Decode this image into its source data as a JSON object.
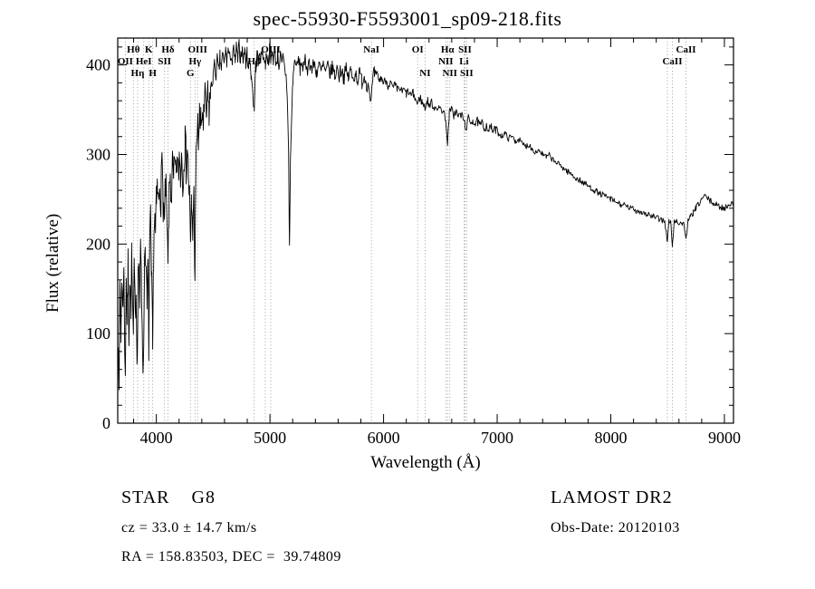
{
  "title": "spec-55930-F5593001_sp09-218.fits",
  "annotations": {
    "object_type": "STAR    G8",
    "survey": "LAMOST DR2",
    "cz": "cz = 33.0 ± 14.7 km/s",
    "obs_date": "Obs-Date: 20120103",
    "coords": "RA = 158.83503, DEC =  39.74809"
  },
  "colors": {
    "background": "#ffffff",
    "axis": "#000000",
    "spectrum": "#000000",
    "marker_line": "#8a8a8a"
  },
  "chart_data": {
    "type": "line",
    "title": "spec-55930-F5593001_sp09-218.fits",
    "xlabel": "Wavelength (Å)",
    "ylabel": "Flux (relative)",
    "xlim": [
      3660,
      9080
    ],
    "ylim": [
      0,
      430
    ],
    "x_ticks": [
      4000,
      5000,
      6000,
      7000,
      8000,
      9000
    ],
    "y_ticks": [
      0,
      100,
      200,
      300,
      400
    ],
    "x_minor_step": 200,
    "y_minor_step": 20,
    "grid": false,
    "legend": "none",
    "line_markers": [
      {
        "label": "Hθ",
        "wavelength": 3798,
        "row": 0
      },
      {
        "label": "K",
        "wavelength": 3933,
        "row": 0
      },
      {
        "label": "Hδ",
        "wavelength": 4102,
        "row": 0
      },
      {
        "label": "OIII",
        "wavelength": 4363,
        "row": 0
      },
      {
        "label": "OIII",
        "wavelength": 5007,
        "row": 0
      },
      {
        "label": "NaI",
        "wavelength": 5893,
        "row": 0
      },
      {
        "label": "OI",
        "wavelength": 6300,
        "row": 0
      },
      {
        "label": "Hα",
        "wavelength": 6563,
        "row": 0
      },
      {
        "label": "SII",
        "wavelength": 6716,
        "row": 0
      },
      {
        "label": "CaII",
        "wavelength": 8662,
        "row": 0
      },
      {
        "label": "OII",
        "wavelength": 3727,
        "row": 1
      },
      {
        "label": "HeI",
        "wavelength": 3889,
        "row": 1
      },
      {
        "label": "SII",
        "wavelength": 4072,
        "row": 1
      },
      {
        "label": "Hγ",
        "wavelength": 4340,
        "row": 1
      },
      {
        "label": "Hβ",
        "wavelength": 4861,
        "row": 1
      },
      {
        "label": "NII",
        "wavelength": 6548,
        "row": 1
      },
      {
        "label": "Li",
        "wavelength": 6708,
        "row": 1
      },
      {
        "label": "CaII",
        "wavelength": 8542,
        "row": 1
      },
      {
        "label": "Hη",
        "wavelength": 3835,
        "row": 2
      },
      {
        "label": "H",
        "wavelength": 3968,
        "row": 2
      },
      {
        "label": "G",
        "wavelength": 4300,
        "row": 2
      },
      {
        "label": "NI",
        "wavelength": 6365,
        "row": 2
      },
      {
        "label": "NII",
        "wavelength": 6583,
        "row": 2
      },
      {
        "label": "SII",
        "wavelength": 6731,
        "row": 2
      }
    ],
    "extra_lines": [
      4959,
      8498
    ],
    "noise": {
      "seed": 7,
      "segments": [
        {
          "from": 3660,
          "to": 4480,
          "amp": 26
        },
        {
          "from": 4480,
          "to": 5950,
          "amp": 9
        },
        {
          "from": 5950,
          "to": 7000,
          "amp": 5
        },
        {
          "from": 7000,
          "to": 9081,
          "amp": 3.5
        }
      ]
    },
    "points": [
      [
        3665,
        110
      ],
      [
        3672,
        60
      ],
      [
        3680,
        145
      ],
      [
        3688,
        95
      ],
      [
        3696,
        170
      ],
      [
        3704,
        120
      ],
      [
        3712,
        180
      ],
      [
        3720,
        100
      ],
      [
        3727,
        60
      ],
      [
        3735,
        160
      ],
      [
        3743,
        115
      ],
      [
        3751,
        175
      ],
      [
        3759,
        105
      ],
      [
        3767,
        165
      ],
      [
        3775,
        125
      ],
      [
        3783,
        180
      ],
      [
        3791,
        130
      ],
      [
        3798,
        90
      ],
      [
        3806,
        170
      ],
      [
        3814,
        110
      ],
      [
        3822,
        160
      ],
      [
        3830,
        70
      ],
      [
        3838,
        150
      ],
      [
        3846,
        185
      ],
      [
        3854,
        130
      ],
      [
        3862,
        190
      ],
      [
        3870,
        145
      ],
      [
        3878,
        100
      ],
      [
        3886,
        50
      ],
      [
        3894,
        170
      ],
      [
        3902,
        205
      ],
      [
        3910,
        165
      ],
      [
        3918,
        125
      ],
      [
        3926,
        175
      ],
      [
        3933,
        90
      ],
      [
        3941,
        195
      ],
      [
        3949,
        220
      ],
      [
        3957,
        160
      ],
      [
        3968,
        80
      ],
      [
        3976,
        195
      ],
      [
        3984,
        230
      ],
      [
        3992,
        210
      ],
      [
        4000,
        240
      ],
      [
        4010,
        260
      ],
      [
        4020,
        240
      ],
      [
        4030,
        275
      ],
      [
        4040,
        255
      ],
      [
        4050,
        285
      ],
      [
        4060,
        250
      ],
      [
        4072,
        220
      ],
      [
        4082,
        265
      ],
      [
        4092,
        225
      ],
      [
        4102,
        172
      ],
      [
        4112,
        240
      ],
      [
        4122,
        275
      ],
      [
        4132,
        255
      ],
      [
        4142,
        285
      ],
      [
        4152,
        265
      ],
      [
        4162,
        290
      ],
      [
        4172,
        270
      ],
      [
        4182,
        295
      ],
      [
        4192,
        275
      ],
      [
        4202,
        300
      ],
      [
        4212,
        280
      ],
      [
        4222,
        305
      ],
      [
        4232,
        270
      ],
      [
        4242,
        300
      ],
      [
        4252,
        315
      ],
      [
        4262,
        290
      ],
      [
        4272,
        310
      ],
      [
        4282,
        280
      ],
      [
        4292,
        250
      ],
      [
        4300,
        190
      ],
      [
        4310,
        245
      ],
      [
        4320,
        215
      ],
      [
        4330,
        250
      ],
      [
        4340,
        172
      ],
      [
        4350,
        290
      ],
      [
        4360,
        330
      ],
      [
        4370,
        318
      ],
      [
        4380,
        340
      ],
      [
        4392,
        328
      ],
      [
        4404,
        348
      ],
      [
        4416,
        336
      ],
      [
        4428,
        355
      ],
      [
        4440,
        342
      ],
      [
        4452,
        360
      ],
      [
        4464,
        350
      ],
      [
        4476,
        368
      ],
      [
        4488,
        378
      ],
      [
        4500,
        388
      ],
      [
        4512,
        398
      ],
      [
        4524,
        388
      ],
      [
        4536,
        405
      ],
      [
        4548,
        392
      ],
      [
        4560,
        408
      ],
      [
        4572,
        396
      ],
      [
        4584,
        412
      ],
      [
        4596,
        400
      ],
      [
        4608,
        416
      ],
      [
        4620,
        404
      ],
      [
        4632,
        418
      ],
      [
        4644,
        406
      ],
      [
        4656,
        414
      ],
      [
        4668,
        402
      ],
      [
        4680,
        416
      ],
      [
        4692,
        404
      ],
      [
        4704,
        418
      ],
      [
        4716,
        406
      ],
      [
        4728,
        420
      ],
      [
        4740,
        408
      ],
      [
        4752,
        418
      ],
      [
        4764,
        406
      ],
      [
        4776,
        416
      ],
      [
        4788,
        404
      ],
      [
        4800,
        412
      ],
      [
        4812,
        398
      ],
      [
        4824,
        406
      ],
      [
        4836,
        388
      ],
      [
        4848,
        372
      ],
      [
        4861,
        348
      ],
      [
        4874,
        398
      ],
      [
        4886,
        412
      ],
      [
        4898,
        402
      ],
      [
        4910,
        416
      ],
      [
        4922,
        406
      ],
      [
        4934,
        418
      ],
      [
        4946,
        408
      ],
      [
        4959,
        400
      ],
      [
        4972,
        414
      ],
      [
        4984,
        404
      ],
      [
        4996,
        416
      ],
      [
        5007,
        402
      ],
      [
        5020,
        416
      ],
      [
        5032,
        406
      ],
      [
        5044,
        414
      ],
      [
        5056,
        402
      ],
      [
        5068,
        412
      ],
      [
        5080,
        400
      ],
      [
        5092,
        410
      ],
      [
        5104,
        398
      ],
      [
        5116,
        408
      ],
      [
        5128,
        396
      ],
      [
        5140,
        390
      ],
      [
        5152,
        368
      ],
      [
        5164,
        300
      ],
      [
        5172,
        195
      ],
      [
        5180,
        290
      ],
      [
        5190,
        340
      ],
      [
        5202,
        385
      ],
      [
        5214,
        400
      ],
      [
        5226,
        408
      ],
      [
        5238,
        396
      ],
      [
        5250,
        406
      ],
      [
        5265,
        396
      ],
      [
        5280,
        404
      ],
      [
        5295,
        394
      ],
      [
        5310,
        404
      ],
      [
        5330,
        396
      ],
      [
        5350,
        404
      ],
      [
        5370,
        394
      ],
      [
        5390,
        402
      ],
      [
        5410,
        392
      ],
      [
        5430,
        400
      ],
      [
        5450,
        392
      ],
      [
        5470,
        400
      ],
      [
        5490,
        390
      ],
      [
        5510,
        398
      ],
      [
        5530,
        390
      ],
      [
        5550,
        398
      ],
      [
        5570,
        388
      ],
      [
        5590,
        396
      ],
      [
        5610,
        388
      ],
      [
        5630,
        396
      ],
      [
        5650,
        386
      ],
      [
        5670,
        394
      ],
      [
        5690,
        386
      ],
      [
        5710,
        394
      ],
      [
        5730,
        384
      ],
      [
        5750,
        392
      ],
      [
        5770,
        384
      ],
      [
        5790,
        390
      ],
      [
        5810,
        382
      ],
      [
        5830,
        388
      ],
      [
        5850,
        380
      ],
      [
        5870,
        376
      ],
      [
        5893,
        362
      ],
      [
        5906,
        384
      ],
      [
        5920,
        390
      ],
      [
        5935,
        384
      ],
      [
        5950,
        388
      ],
      [
        5965,
        382
      ],
      [
        5980,
        386
      ],
      [
        6000,
        380
      ],
      [
        6020,
        383
      ],
      [
        6040,
        377
      ],
      [
        6060,
        380
      ],
      [
        6080,
        374
      ],
      [
        6100,
        377
      ],
      [
        6120,
        372
      ],
      [
        6140,
        374
      ],
      [
        6160,
        370
      ],
      [
        6180,
        372
      ],
      [
        6200,
        368
      ],
      [
        6220,
        370
      ],
      [
        6240,
        366
      ],
      [
        6260,
        368
      ],
      [
        6280,
        362
      ],
      [
        6300,
        356
      ],
      [
        6320,
        364
      ],
      [
        6340,
        358
      ],
      [
        6365,
        352
      ],
      [
        6385,
        360
      ],
      [
        6405,
        355
      ],
      [
        6425,
        358
      ],
      [
        6445,
        352
      ],
      [
        6465,
        355
      ],
      [
        6485,
        350
      ],
      [
        6505,
        352
      ],
      [
        6525,
        348
      ],
      [
        6548,
        340
      ],
      [
        6563,
        308
      ],
      [
        6578,
        346
      ],
      [
        6598,
        350
      ],
      [
        6618,
        344
      ],
      [
        6638,
        348
      ],
      [
        6658,
        342
      ],
      [
        6678,
        345
      ],
      [
        6700,
        340
      ],
      [
        6716,
        334
      ],
      [
        6731,
        330
      ],
      [
        6746,
        340
      ],
      [
        6766,
        336
      ],
      [
        6786,
        339
      ],
      [
        6806,
        334
      ],
      [
        6826,
        337
      ],
      [
        6846,
        332
      ],
      [
        6866,
        335
      ],
      [
        6886,
        330
      ],
      [
        6906,
        332
      ],
      [
        6926,
        328
      ],
      [
        6946,
        330
      ],
      [
        6966,
        326
      ],
      [
        6986,
        328
      ],
      [
        7010,
        324
      ],
      [
        7040,
        321
      ],
      [
        7070,
        323
      ],
      [
        7100,
        318
      ],
      [
        7130,
        320
      ],
      [
        7160,
        315
      ],
      [
        7190,
        317
      ],
      [
        7220,
        312
      ],
      [
        7250,
        309
      ],
      [
        7280,
        311
      ],
      [
        7310,
        306
      ],
      [
        7340,
        303
      ],
      [
        7370,
        305
      ],
      [
        7400,
        300
      ],
      [
        7430,
        297
      ],
      [
        7460,
        299
      ],
      [
        7490,
        294
      ],
      [
        7520,
        291
      ],
      [
        7550,
        288
      ],
      [
        7580,
        285
      ],
      [
        7610,
        282
      ],
      [
        7640,
        279
      ],
      [
        7670,
        276
      ],
      [
        7700,
        273
      ],
      [
        7730,
        271
      ],
      [
        7760,
        268
      ],
      [
        7790,
        266
      ],
      [
        7820,
        263
      ],
      [
        7850,
        261
      ],
      [
        7880,
        258
      ],
      [
        7910,
        256
      ],
      [
        7940,
        254
      ],
      [
        7970,
        252
      ],
      [
        8000,
        250
      ],
      [
        8030,
        248
      ],
      [
        8060,
        246
      ],
      [
        8090,
        244
      ],
      [
        8120,
        243
      ],
      [
        8150,
        241
      ],
      [
        8180,
        240
      ],
      [
        8210,
        238
      ],
      [
        8240,
        237
      ],
      [
        8270,
        236
      ],
      [
        8300,
        234
      ],
      [
        8330,
        233
      ],
      [
        8360,
        231
      ],
      [
        8390,
        230
      ],
      [
        8420,
        228
      ],
      [
        8450,
        227
      ],
      [
        8475,
        226
      ],
      [
        8498,
        202
      ],
      [
        8512,
        226
      ],
      [
        8527,
        224
      ],
      [
        8542,
        198
      ],
      [
        8557,
        224
      ],
      [
        8577,
        226
      ],
      [
        8600,
        224
      ],
      [
        8625,
        223
      ],
      [
        8645,
        222
      ],
      [
        8662,
        206
      ],
      [
        8680,
        225
      ],
      [
        8700,
        230
      ],
      [
        8725,
        235
      ],
      [
        8750,
        240
      ],
      [
        8775,
        245
      ],
      [
        8800,
        250
      ],
      [
        8825,
        254
      ],
      [
        8850,
        251
      ],
      [
        8875,
        248
      ],
      [
        8900,
        246
      ],
      [
        8925,
        244
      ],
      [
        8950,
        242
      ],
      [
        8975,
        241
      ],
      [
        9000,
        240
      ],
      [
        9025,
        242
      ],
      [
        9050,
        246
      ],
      [
        9080,
        244
      ]
    ]
  }
}
